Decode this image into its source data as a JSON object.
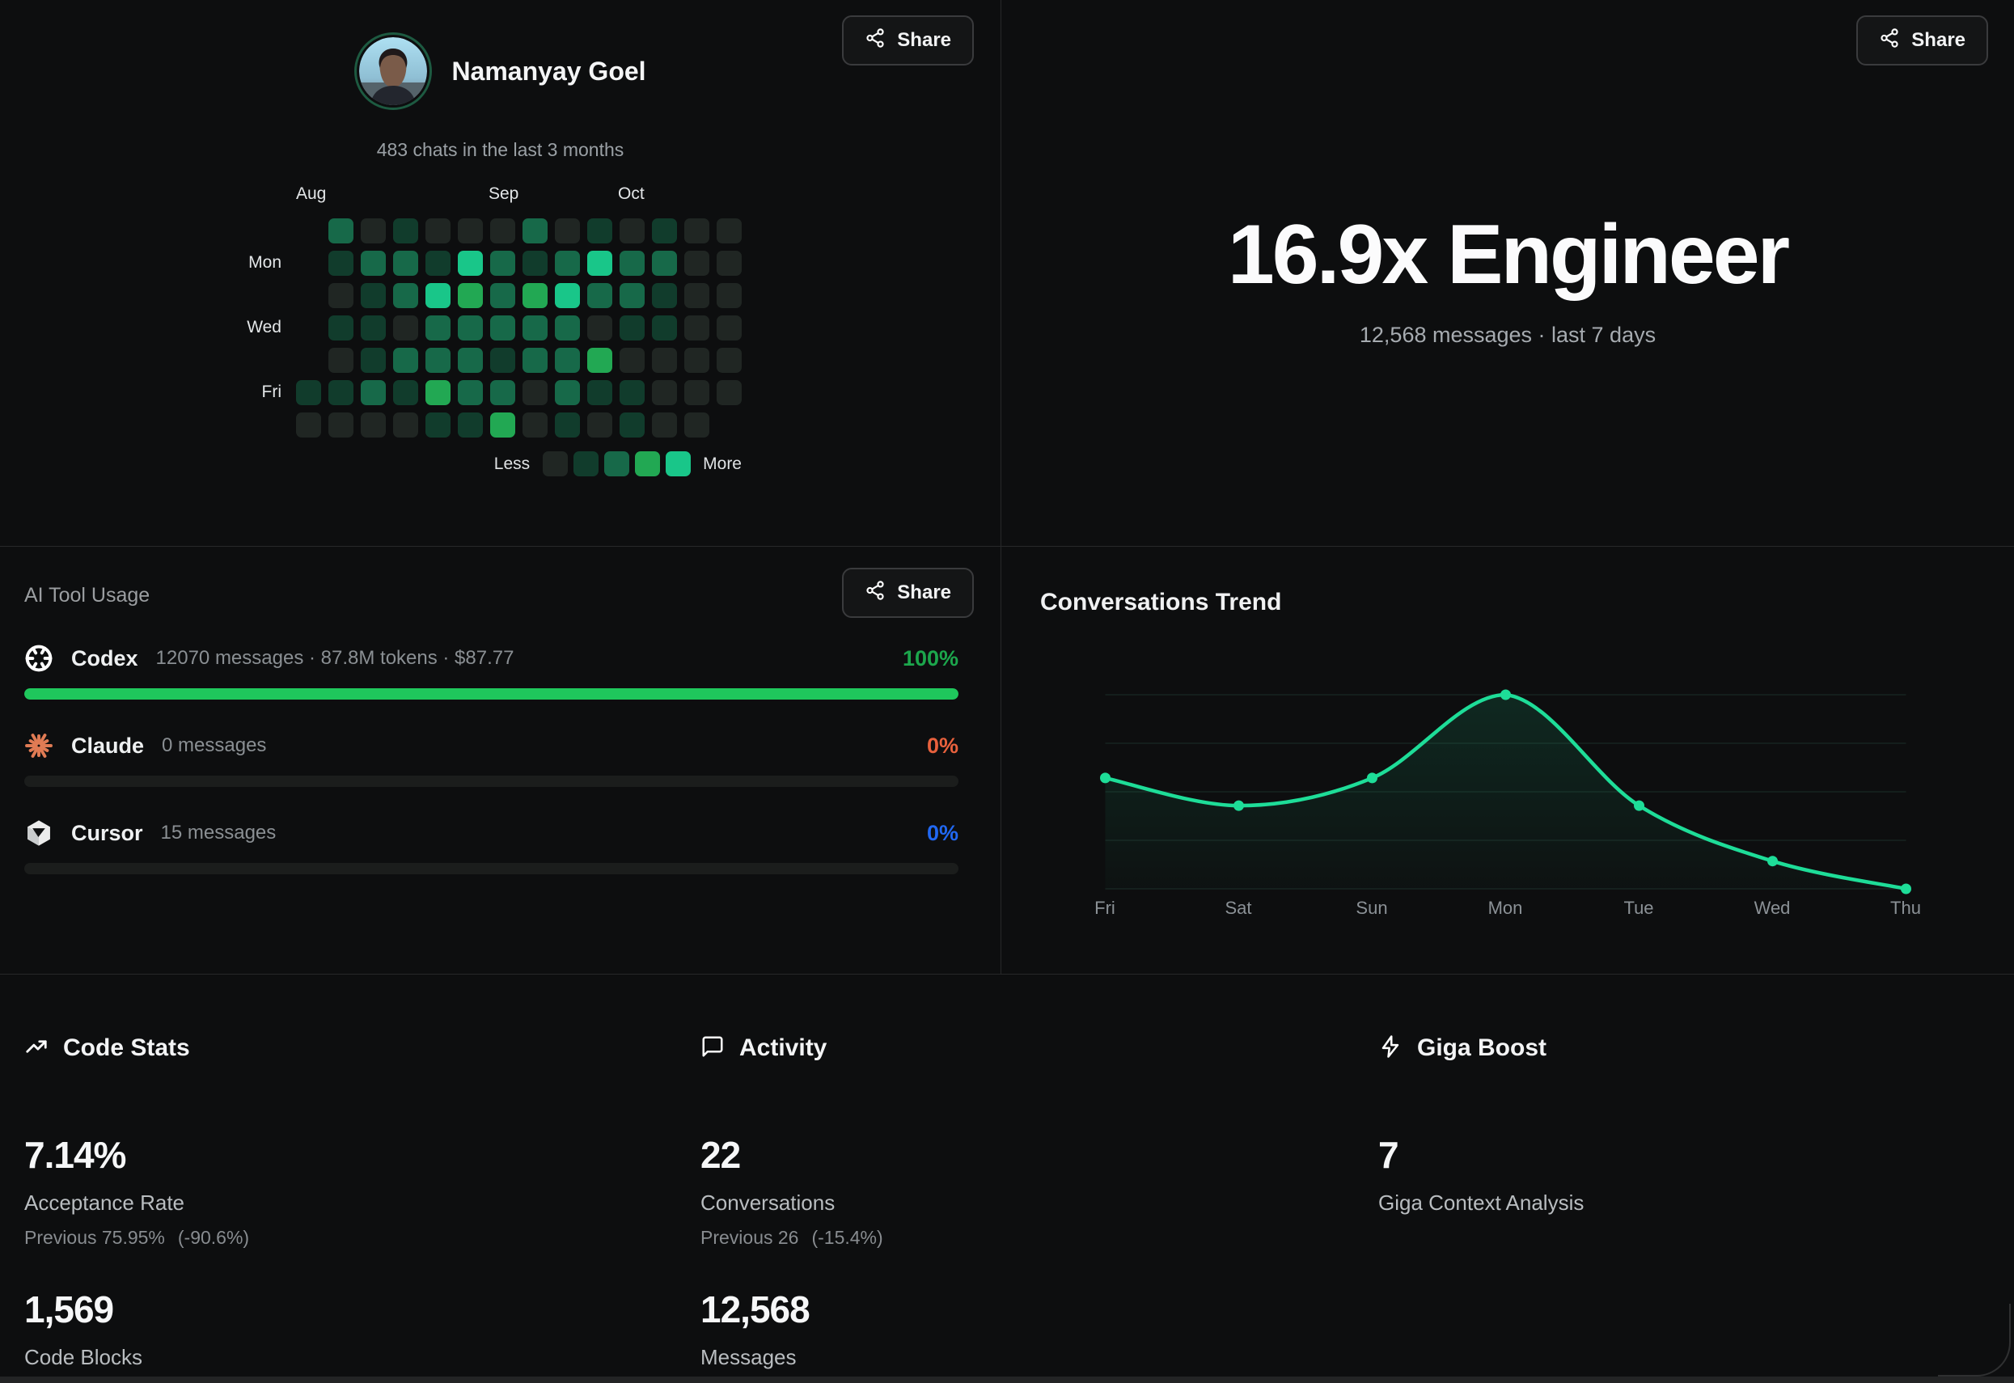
{
  "profile": {
    "name": "Namanyay Goel",
    "subtitle": "483 chats in the last 3 months",
    "share_label": "Share",
    "share_icon": "share-icon"
  },
  "heatmap": {
    "month_labels": [
      {
        "label": "Aug",
        "x": 0
      },
      {
        "label": "Sep",
        "x": 238
      },
      {
        "label": "Oct",
        "x": 398
      }
    ],
    "day_labels": [
      {
        "label": "Mon",
        "row": 1
      },
      {
        "label": "Wed",
        "row": 3
      },
      {
        "label": "Fri",
        "row": 5
      }
    ],
    "legend_less": "Less",
    "legend_more": "More",
    "level_colors": [
      "#202623",
      "#113c2c",
      "#176949",
      "#22a853",
      "#19c689"
    ],
    "cells": [
      [
        -1,
        2,
        0,
        1,
        0,
        0,
        0,
        2,
        0,
        1,
        0,
        1,
        0,
        0
      ],
      [
        -1,
        1,
        2,
        2,
        1,
        4,
        2,
        1,
        2,
        4,
        2,
        2,
        0,
        0
      ],
      [
        -1,
        0,
        1,
        2,
        4,
        3,
        2,
        3,
        4,
        2,
        2,
        1,
        0,
        0
      ],
      [
        -1,
        1,
        1,
        0,
        2,
        2,
        2,
        2,
        2,
        0,
        1,
        1,
        0,
        0
      ],
      [
        -1,
        0,
        1,
        2,
        2,
        2,
        1,
        2,
        2,
        3,
        0,
        0,
        0,
        0
      ],
      [
        1,
        1,
        2,
        1,
        3,
        2,
        2,
        0,
        2,
        1,
        1,
        0,
        0,
        0
      ],
      [
        0,
        0,
        0,
        0,
        1,
        1,
        3,
        0,
        1,
        0,
        1,
        0,
        0,
        -1
      ]
    ]
  },
  "hero": {
    "title": "16.9x Engineer",
    "subtitle": "12,568 messages · last 7 days",
    "share_label": "Share",
    "share_icon": "share-icon"
  },
  "tool_usage": {
    "title": "AI Tool Usage",
    "share_label": "Share",
    "share_icon": "share-icon",
    "tools": [
      {
        "icon": "openai-icon",
        "name": "Codex",
        "meta": "12070 messages · 87.8M tokens · $87.77",
        "percent": "100%",
        "percent_color": "#1ca64c",
        "bar_color": "#1fc75c",
        "fraction": 1
      },
      {
        "icon": "claude-icon",
        "name": "Claude",
        "meta": "0 messages",
        "percent": "0%",
        "percent_color": "#e8613d",
        "bar_color": "#1fc75c",
        "fraction": 0
      },
      {
        "icon": "cursor-icon",
        "name": "Cursor",
        "meta": "15 messages",
        "percent": "0%",
        "percent_color": "#2168f2",
        "bar_color": "#1fc75c",
        "fraction": 0
      }
    ]
  },
  "chart_data": {
    "type": "area",
    "title": "Conversations Trend",
    "x": [
      "Fri",
      "Sat",
      "Sun",
      "Mon",
      "Tue",
      "Wed",
      "Thu"
    ],
    "values": [
      4,
      3,
      4,
      7,
      3,
      1,
      0
    ],
    "ylim": [
      0,
      7
    ],
    "grid": true,
    "legend_position": "none",
    "line_color": "#1edd98",
    "fill_color": "#1edd98"
  },
  "stats": {
    "columns": [
      {
        "icon": "trending-up-icon",
        "title": "Code Stats",
        "stats": [
          {
            "value": "7.14%",
            "label": "Acceptance Rate",
            "previous": "Previous 75.95%",
            "delta": "(-90.6%)"
          },
          {
            "value": "1,569",
            "label": "Code Blocks"
          }
        ]
      },
      {
        "icon": "chat-icon",
        "title": "Activity",
        "stats": [
          {
            "value": "22",
            "label": "Conversations",
            "previous": "Previous 26",
            "delta": "(-15.4%)"
          },
          {
            "value": "12,568",
            "label": "Messages"
          }
        ]
      },
      {
        "icon": "lightning-icon",
        "title": "Giga Boost",
        "stats": [
          {
            "value": "7",
            "label": "Giga Context Analysis"
          }
        ]
      }
    ]
  }
}
